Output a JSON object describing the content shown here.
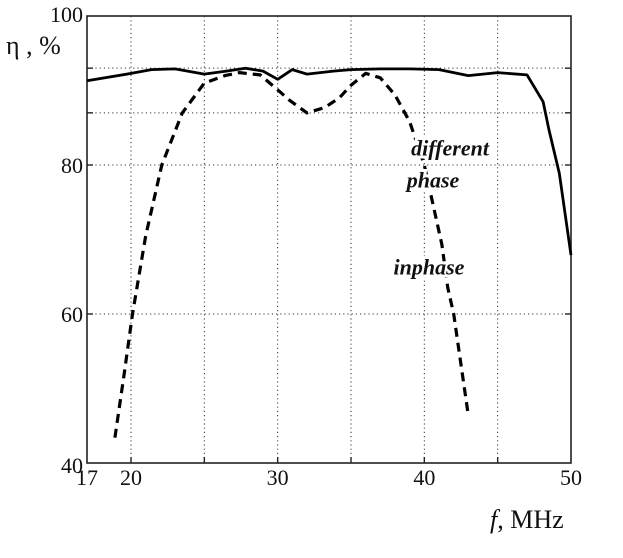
{
  "chart_data": {
    "type": "line",
    "title": "",
    "xlabel_italic": "f",
    "xlabel_rest": ", MHz",
    "ylabel": "η , %",
    "xlim": [
      17,
      50
    ],
    "ylim": [
      40,
      100
    ],
    "x_ticks": [
      17,
      20,
      30,
      40,
      50
    ],
    "x_tick_labels": [
      "17",
      "20",
      "30",
      "40",
      "50"
    ],
    "x_grid": [
      20,
      25,
      30,
      35,
      40,
      45
    ],
    "y_ticks": [
      40,
      60,
      80,
      100
    ],
    "y_tick_labels": [
      "40",
      "60",
      "80",
      "100"
    ],
    "y_grid": [
      60,
      80,
      87,
      93
    ],
    "grid": true,
    "series": [
      {
        "name": "different phase",
        "style": "solid",
        "x": [
          17,
          20,
          21.4,
          23,
          25,
          26.5,
          27.8,
          29,
          30,
          31,
          32,
          33.8,
          35,
          37,
          39,
          41,
          43,
          45,
          47,
          48.1,
          48.5,
          49.2,
          50
        ],
        "y": [
          91.3,
          92.3,
          92.8,
          92.9,
          92.2,
          92.6,
          93.0,
          92.6,
          91.5,
          92.8,
          92.2,
          92.6,
          92.8,
          92.9,
          92.9,
          92.8,
          92.0,
          92.4,
          92.1,
          88.5,
          84.7,
          78.9,
          67.9
        ]
      },
      {
        "name": "inphase",
        "style": "dashed",
        "x": [
          18.9,
          19.5,
          20.1,
          21.0,
          22.1,
          23.5,
          25,
          26.4,
          27.4,
          28.8,
          30,
          30.8,
          32,
          33.2,
          34.2,
          35,
          36,
          37,
          38,
          39,
          40,
          41.2,
          41.6,
          42,
          43
        ],
        "y": [
          43.4,
          51.5,
          60,
          70.5,
          80,
          87,
          91,
          92,
          92.4,
          92.1,
          90.1,
          88.7,
          87.0,
          87.7,
          89,
          90.7,
          92.3,
          91.7,
          89.4,
          85.8,
          80,
          69.3,
          63.5,
          60,
          46.4
        ]
      }
    ],
    "annotations": [
      {
        "text": "different",
        "x": 39.1,
        "y": 81.3
      },
      {
        "text": "phase",
        "x": 38.8,
        "y": 77.0
      },
      {
        "text": "inphase",
        "x": 37.9,
        "y": 65.3
      }
    ]
  }
}
